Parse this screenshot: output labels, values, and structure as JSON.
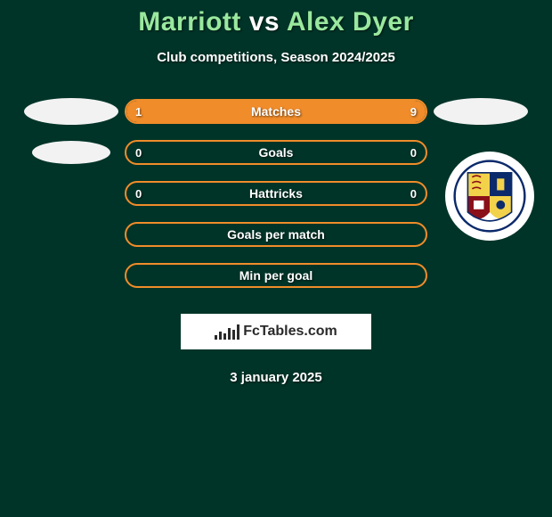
{
  "title": {
    "player1": "Marriott",
    "vs": "vs",
    "player2": "Alex Dyer"
  },
  "subtitle": "Club competitions, Season 2024/2025",
  "colors": {
    "background": "#003428",
    "accent": "#f08c2a",
    "title_player": "#9ae89e",
    "text": "#ffffff"
  },
  "stats": [
    {
      "label": "Matches",
      "left_val": "1",
      "right_val": "9",
      "left_pct": 10,
      "right_pct": 90
    },
    {
      "label": "Goals",
      "left_val": "0",
      "right_val": "0",
      "left_pct": 0,
      "right_pct": 0
    },
    {
      "label": "Hattricks",
      "left_val": "0",
      "right_val": "0",
      "left_pct": 0,
      "right_pct": 0
    },
    {
      "label": "Goals per match",
      "left_val": "",
      "right_val": "",
      "left_pct": 0,
      "right_pct": 0
    },
    {
      "label": "Min per goal",
      "left_val": "",
      "right_val": "",
      "left_pct": 0,
      "right_pct": 0
    }
  ],
  "left_objects": [
    true,
    true,
    false,
    false,
    false
  ],
  "right_objects": [
    true,
    "badge",
    false,
    false,
    false
  ],
  "crest": {
    "quad_colors": [
      "#f2d24a",
      "#0b2a6b",
      "#8a0f18",
      "#f2d24a"
    ],
    "ring_color": "#0b2a6b"
  },
  "site_logo": {
    "text": "FcTables.com",
    "bars": [
      5,
      9,
      7,
      13,
      11,
      17
    ]
  },
  "date": "3 january 2025"
}
